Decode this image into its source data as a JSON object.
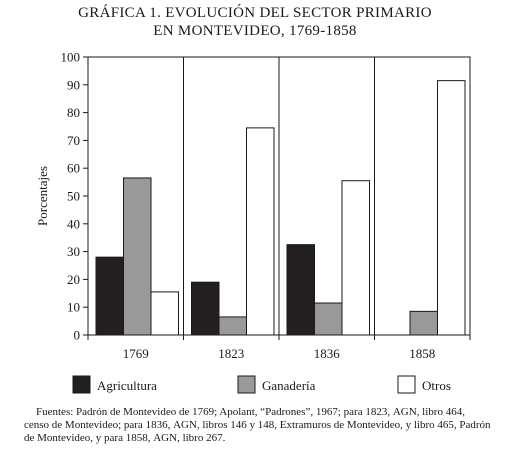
{
  "title": {
    "line1": "GRÁFICA 1. EVOLUCIÓN DEL SECTOR PRIMARIO",
    "line2_main": "EN MONTEVIDEO,",
    "line2_years": " 1769-1858"
  },
  "source": {
    "p1": "Fuentes: Padrón de Montevideo de 1769; Apolant, “Padrones”, 1967; para 1823, ",
    "agn1": "AGN",
    "p2": ", libro 464, censo de Montevideo; para 1836, ",
    "agn2": "AGN",
    "p3": ", libros 146 y 148, Extramuros de Montevideo, y libro 465, Padrón de Montevideo, y para 1858, ",
    "agn3": "AGN",
    "p4": ", libro 267."
  },
  "colors": {
    "agricultura": "#231f20",
    "ganaderia": "#999999",
    "otros": "#ffffff",
    "stroke": "#1a1a1a"
  },
  "chart_data": {
    "type": "bar",
    "title": "GRÁFICA 1. EVOLUCIÓN DEL SECTOR PRIMARIO EN MONTEVIDEO, 1769-1858",
    "xlabel": "",
    "ylabel": "Porcentajes",
    "ylim": [
      0,
      100
    ],
    "yticks": [
      0,
      10,
      20,
      30,
      40,
      50,
      60,
      70,
      80,
      90,
      100
    ],
    "categories": [
      "1769",
      "1823",
      "1836",
      "1858"
    ],
    "series": [
      {
        "name": "Agricultura",
        "color_key": "agricultura",
        "values": [
          28,
          19,
          32.5,
          0
        ]
      },
      {
        "name": "Ganadería",
        "color_key": "ganaderia",
        "values": [
          56.5,
          6.5,
          11.5,
          8.5
        ]
      },
      {
        "name": "Otros",
        "color_key": "otros",
        "values": [
          15.5,
          74.5,
          55.5,
          91.5
        ]
      }
    ],
    "grid": "vertical separators between categories",
    "legend_position": "bottom"
  }
}
